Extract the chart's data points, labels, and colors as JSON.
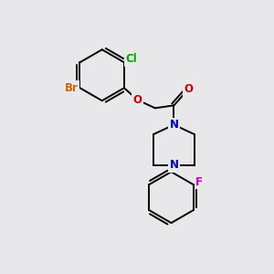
{
  "bg_color": "#e8e8ea",
  "bond_color": "#000000",
  "bond_width": 1.4,
  "atom_colors": {
    "Br": "#cc6600",
    "Cl": "#00aa00",
    "O": "#cc0000",
    "N": "#0000cc",
    "F": "#cc00cc",
    "C": "#000000"
  },
  "font_size": 8.5
}
